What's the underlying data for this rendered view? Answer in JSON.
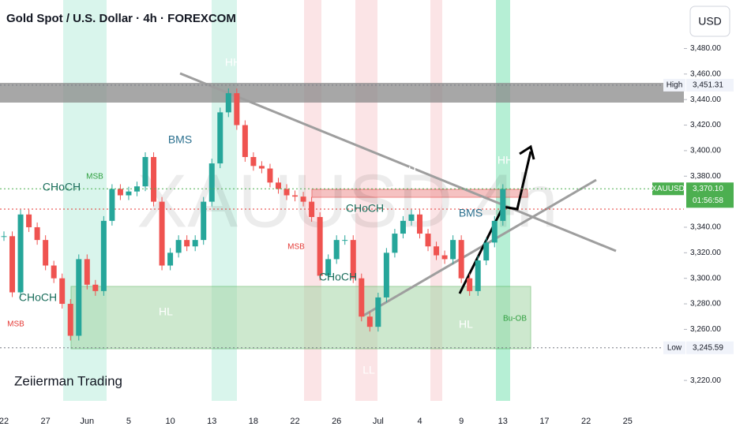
{
  "chart_data": {
    "type": "candlestick",
    "title": "Gold Spot / U.S. Dollar · 4h · FOREXCOM",
    "currency": "USD",
    "watermark": "XAUUSD 4h",
    "author": "Zeiierman Trading",
    "categories": [
      "22",
      null,
      null,
      null,
      null,
      "27",
      null,
      null,
      null,
      null,
      "Jun",
      null,
      null,
      null,
      null,
      "5",
      null,
      null,
      null,
      null,
      "10",
      null,
      null,
      null,
      null,
      "13",
      null,
      null,
      null,
      null,
      "18",
      null,
      null,
      null,
      null,
      "22",
      null,
      null,
      null,
      null,
      "26",
      null,
      null,
      null,
      null,
      "Jul",
      null,
      null,
      null,
      null,
      "4",
      null,
      null,
      null,
      null,
      "9",
      null,
      null,
      null,
      null,
      "13",
      null,
      null,
      null,
      null,
      "17",
      null,
      null,
      null,
      null,
      "22",
      null,
      null,
      null,
      null,
      "25"
    ],
    "values": [
      3333,
      3289,
      3350,
      3340,
      3330,
      3310,
      3300,
      3280,
      3255,
      3315,
      3295,
      3290,
      3345,
      3370,
      3365,
      3368,
      3372,
      3395,
      3360,
      3310,
      3320,
      3330,
      3325,
      3330,
      3360,
      3390,
      3430,
      3445,
      3420,
      3395,
      3388,
      3386,
      3375,
      3370,
      3365,
      3364,
      3360,
      3348,
      3302,
      3315,
      3330,
      3330,
      3300,
      3270,
      3262,
      3285,
      3320,
      3335,
      3345,
      3350,
      3335,
      3325,
      3318,
      3315,
      3330,
      3300,
      3290,
      3314,
      3328,
      3345,
      3370,
      null,
      null,
      null,
      null,
      null,
      null,
      null,
      null,
      null,
      null,
      null,
      null,
      null,
      null,
      null
    ],
    "up_color": "#26a69a",
    "down_color": "#ef5350",
    "ylim": [
      3204,
      3518
    ],
    "yticks": [
      {
        "value": 3220,
        "label": "3,220.00"
      },
      {
        "value": 3260,
        "label": "3,260.00"
      },
      {
        "value": 3280,
        "label": "3,280.00"
      },
      {
        "value": 3300,
        "label": "3,300.00"
      },
      {
        "value": 3320,
        "label": "3,320.00"
      },
      {
        "value": 3340,
        "label": "3,340.00"
      },
      {
        "value": 3380,
        "label": "3,380.00"
      },
      {
        "value": 3400,
        "label": "3,400.00"
      },
      {
        "value": 3420,
        "label": "3,420.00"
      },
      {
        "value": 3440,
        "label": "3,440.00"
      },
      {
        "value": 3460,
        "label": "3,460.00"
      },
      {
        "value": 3480,
        "label": "3,480.00"
      }
    ],
    "high": {
      "label": "High",
      "value": 3451.31,
      "value_label": "3,451.31"
    },
    "low": {
      "label": "Low",
      "value": 3245.59,
      "value_label": "3,245.59"
    },
    "last": {
      "label": "XAUUSD",
      "value": 3370.1,
      "value_label": "3,370.10",
      "countdown": "01:56:58"
    },
    "annotations": [
      "LH",
      "CHoCH",
      "MSB",
      "HH",
      "BMS",
      "HH",
      "HL",
      "CHoCH",
      "MSB",
      "MSB",
      "CHoCH",
      "LH",
      "CHoCH",
      "LL",
      "BMS",
      "HH",
      "HL",
      "Bu-OB"
    ]
  }
}
